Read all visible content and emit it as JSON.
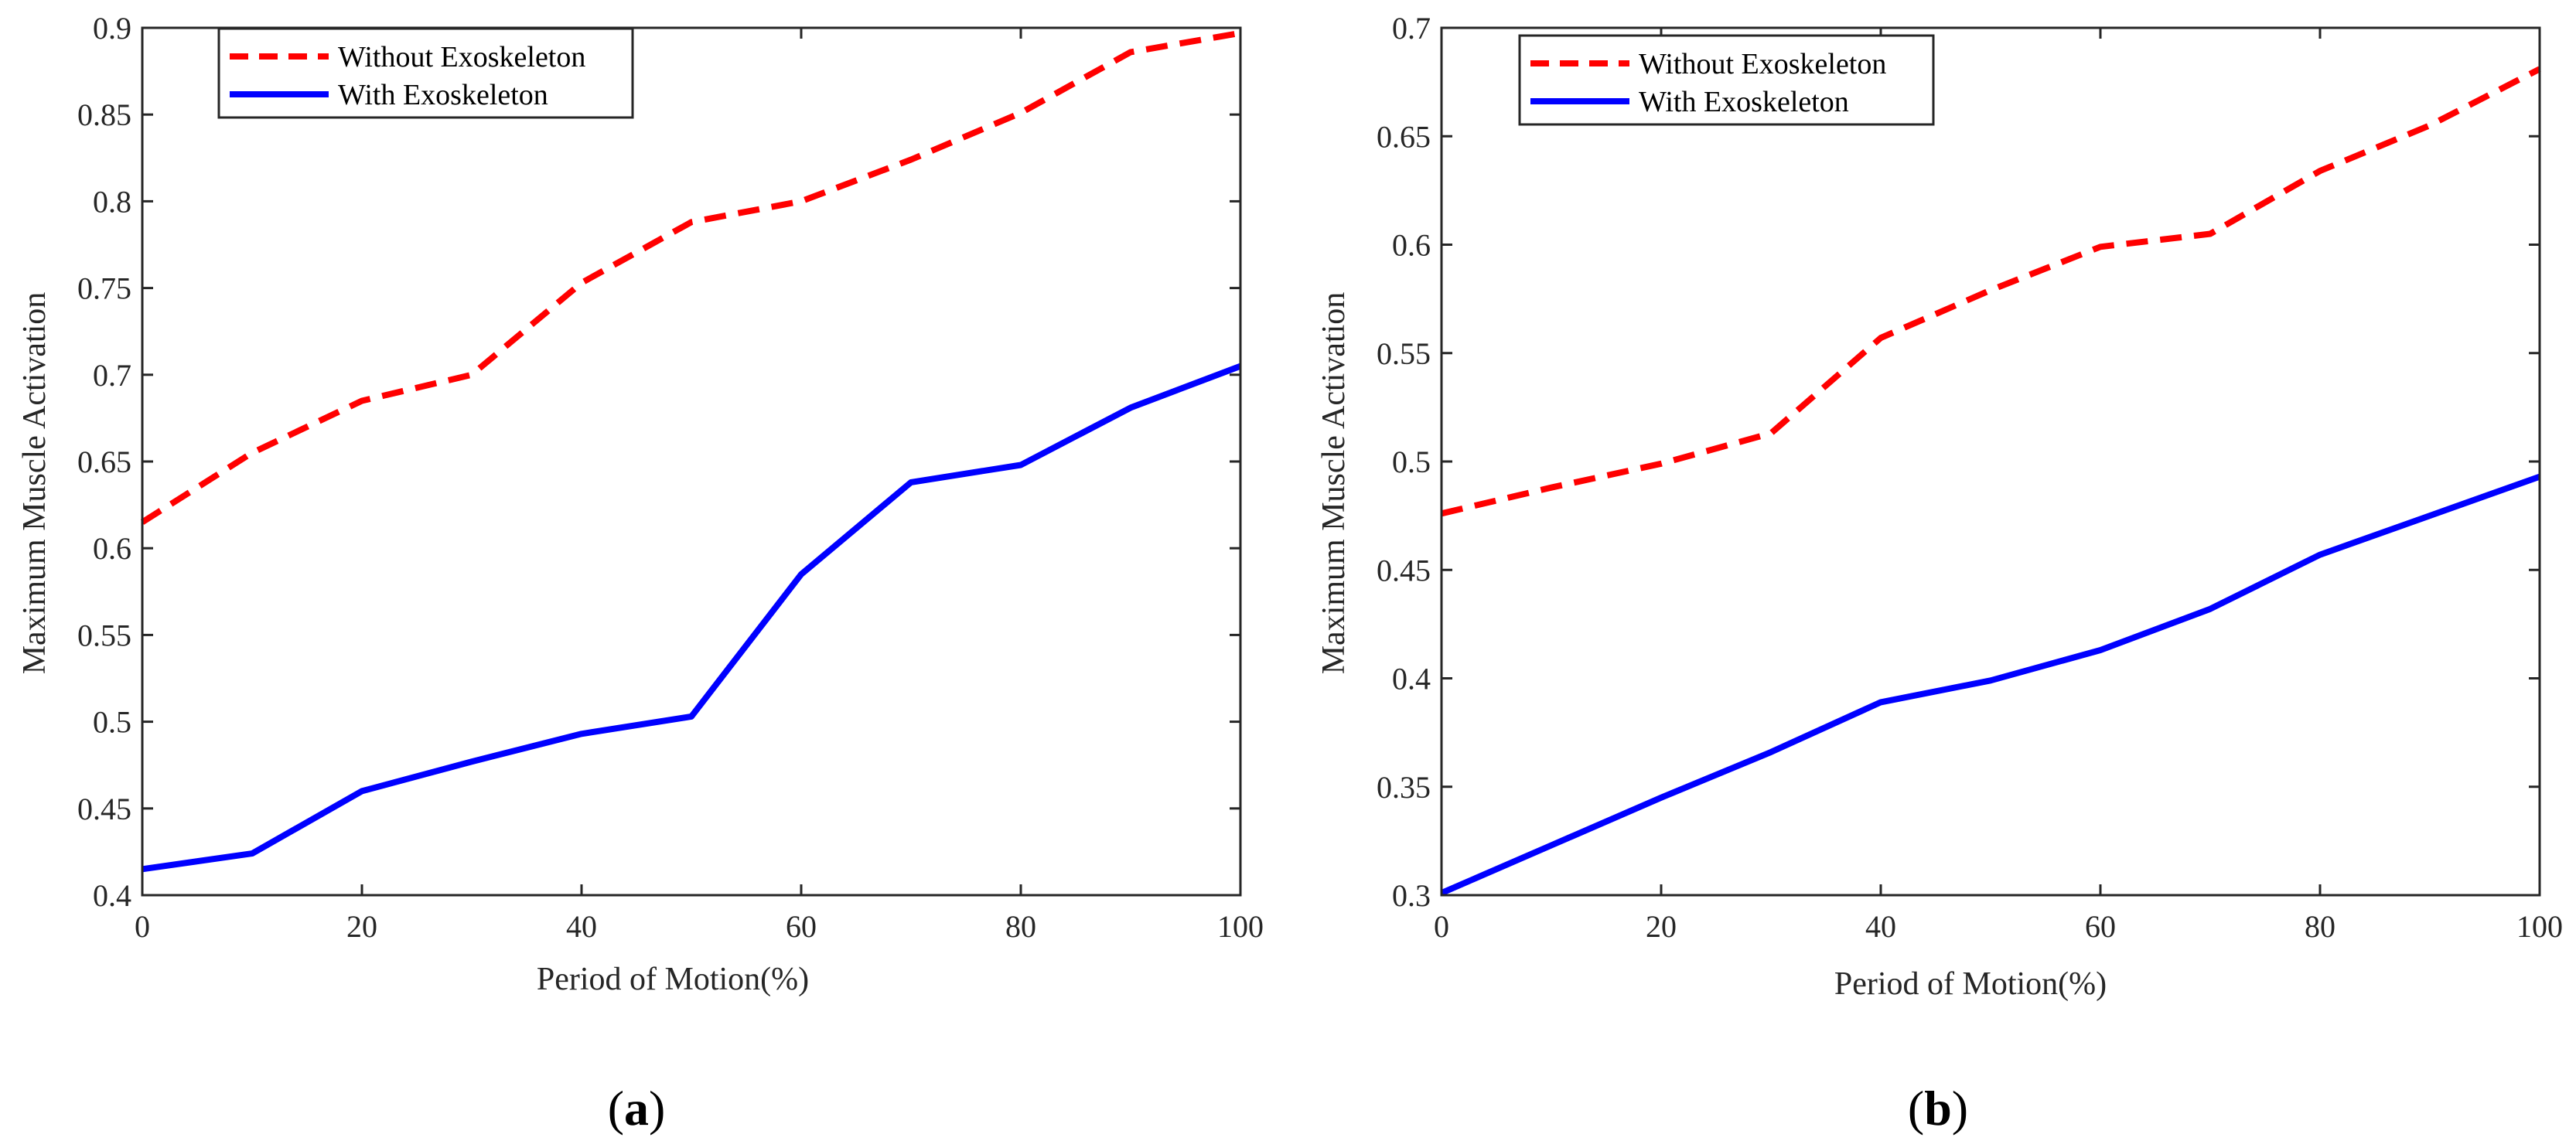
{
  "chart_data": [
    {
      "type": "line",
      "panel_label": {
        "open": "(",
        "letter": "a",
        "close": ")"
      },
      "xlabel": "Period of Motion(%)",
      "ylabel": "Maximum Muscle Activation",
      "xlim": [
        0,
        100
      ],
      "ylim": [
        0.4,
        0.9
      ],
      "xticks": [
        0,
        20,
        40,
        60,
        80,
        100
      ],
      "xtick_labels": [
        "0",
        "20",
        "40",
        "60",
        "80",
        "100"
      ],
      "yticks": [
        0.4,
        0.45,
        0.5,
        0.55,
        0.6,
        0.65,
        0.7,
        0.75,
        0.8,
        0.85,
        0.9
      ],
      "ytick_labels": [
        "0.4",
        "0.45",
        "0.5",
        "0.55",
        "0.6",
        "0.65",
        "0.7",
        "0.75",
        "0.8",
        "0.85",
        "0.9"
      ],
      "grid": false,
      "legend_position": "top-left",
      "series": [
        {
          "name": "Without Exoskeleton",
          "color": "#ff0000",
          "style": "dashed",
          "x": [
            0,
            10,
            20,
            30,
            40,
            50,
            60,
            70,
            80,
            90,
            100
          ],
          "values": [
            0.615,
            0.655,
            0.685,
            0.7,
            0.753,
            0.788,
            0.8,
            0.824,
            0.851,
            0.886,
            0.897
          ]
        },
        {
          "name": "With Exoskeleton",
          "color": "#0000ff",
          "style": "solid",
          "x": [
            0,
            10,
            20,
            30,
            40,
            50,
            60,
            70,
            80,
            90,
            100
          ],
          "values": [
            0.415,
            0.424,
            0.46,
            0.477,
            0.493,
            0.503,
            0.585,
            0.638,
            0.648,
            0.681,
            0.705
          ]
        }
      ]
    },
    {
      "type": "line",
      "panel_label": {
        "open": "(",
        "letter": "b",
        "close": ")"
      },
      "xlabel": "Period of Motion(%)",
      "ylabel": "Maximum Muscle Activation",
      "xlim": [
        0,
        100
      ],
      "ylim": [
        0.3,
        0.7
      ],
      "xticks": [
        0,
        20,
        40,
        60,
        80,
        100
      ],
      "xtick_labels": [
        "0",
        "20",
        "40",
        "60",
        "80",
        "100"
      ],
      "yticks": [
        0.3,
        0.35,
        0.4,
        0.45,
        0.5,
        0.55,
        0.6,
        0.65,
        0.7
      ],
      "ytick_labels": [
        "0.3",
        "0.35",
        "0.4",
        "0.45",
        "0.5",
        "0.55",
        "0.6",
        "0.65",
        "0.7"
      ],
      "grid": false,
      "legend_position": "top-left",
      "series": [
        {
          "name": "Without Exoskeleton",
          "color": "#ff0000",
          "style": "dashed",
          "x": [
            0,
            10,
            20,
            30,
            40,
            50,
            60,
            70,
            80,
            90,
            100
          ],
          "values": [
            0.476,
            0.488,
            0.499,
            0.513,
            0.557,
            0.579,
            0.599,
            0.605,
            0.634,
            0.655,
            0.681
          ]
        },
        {
          "name": "With Exoskeleton",
          "color": "#0000ff",
          "style": "solid",
          "x": [
            0,
            10,
            20,
            30,
            40,
            50,
            60,
            70,
            80,
            90,
            100
          ],
          "values": [
            0.301,
            0.323,
            0.345,
            0.366,
            0.389,
            0.399,
            0.413,
            0.432,
            0.457,
            0.475,
            0.493
          ]
        }
      ]
    }
  ]
}
